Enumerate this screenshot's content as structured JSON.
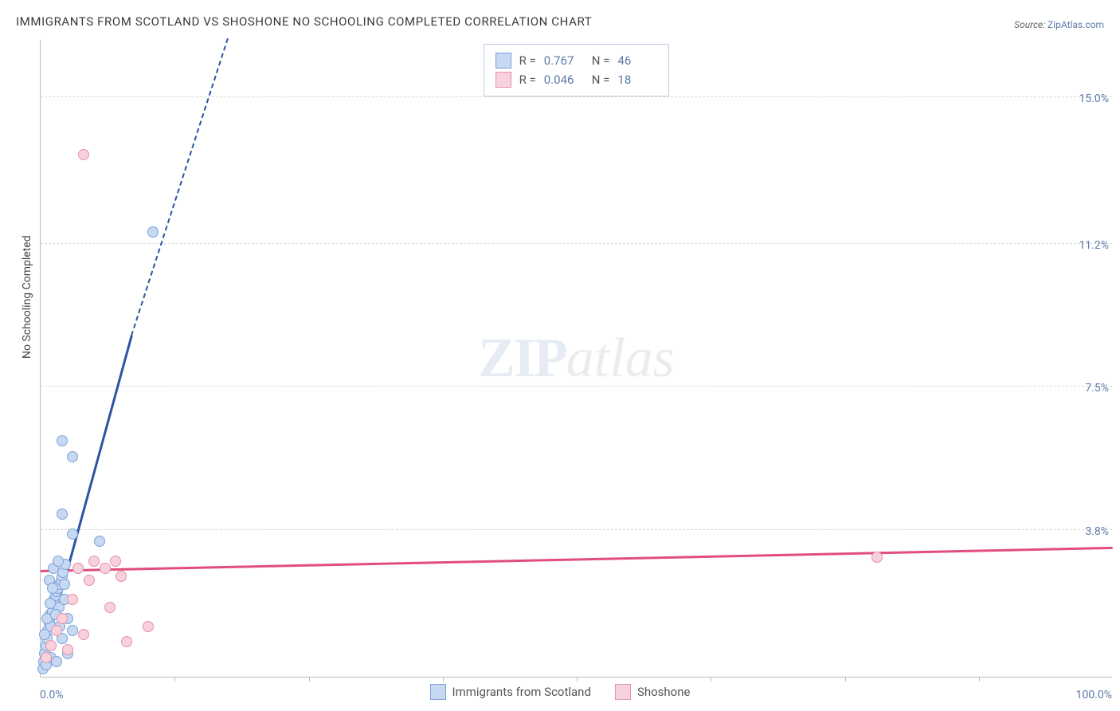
{
  "title": "IMMIGRANTS FROM SCOTLAND VS SHOSHONE NO SCHOOLING COMPLETED CORRELATION CHART",
  "source_prefix": "Source: ",
  "source_link": "ZipAtlas.com",
  "ylabel": "No Schooling Completed",
  "watermark": {
    "a": "ZIP",
    "b": "atlas"
  },
  "chart": {
    "type": "scatter",
    "xlim": [
      0,
      100
    ],
    "ylim": [
      0,
      16.5
    ],
    "x_ticks_count": 8,
    "y_gridlines": [
      {
        "val": 3.8,
        "label": "3.8%"
      },
      {
        "val": 7.5,
        "label": "7.5%"
      },
      {
        "val": 11.2,
        "label": "11.2%"
      },
      {
        "val": 15.0,
        "label": "15.0%"
      }
    ],
    "x_left_label": "0.0%",
    "x_right_label": "100.0%",
    "grid_color": "#d8d8d8",
    "axis_color": "#bbbbbb",
    "point_radius": 7,
    "background_color": "#ffffff"
  },
  "series": [
    {
      "id": "scotland",
      "label": "Immigrants from Scotland",
      "R": "0.767",
      "N": "46",
      "fill": "#c7d8f2",
      "stroke": "#7ba2d8",
      "line_color": "#2b54a3",
      "trend": {
        "x0": 0,
        "y0": 0.2,
        "x1": 8.5,
        "y1": 8.8,
        "x2": 17.5,
        "y2": 16.5
      },
      "points": [
        {
          "x": 0.2,
          "y": 0.2
        },
        {
          "x": 0.3,
          "y": 0.4
        },
        {
          "x": 0.4,
          "y": 0.6
        },
        {
          "x": 0.5,
          "y": 0.8
        },
        {
          "x": 0.6,
          "y": 1.0
        },
        {
          "x": 0.7,
          "y": 1.2
        },
        {
          "x": 0.8,
          "y": 1.4
        },
        {
          "x": 0.9,
          "y": 1.6
        },
        {
          "x": 1.0,
          "y": 1.3
        },
        {
          "x": 1.1,
          "y": 1.7
        },
        {
          "x": 1.2,
          "y": 1.9
        },
        {
          "x": 1.3,
          "y": 2.0
        },
        {
          "x": 1.4,
          "y": 2.1
        },
        {
          "x": 1.5,
          "y": 2.2
        },
        {
          "x": 1.6,
          "y": 2.3
        },
        {
          "x": 1.7,
          "y": 1.8
        },
        {
          "x": 1.8,
          "y": 2.4
        },
        {
          "x": 1.9,
          "y": 2.5
        },
        {
          "x": 2.0,
          "y": 2.6
        },
        {
          "x": 2.1,
          "y": 2.7
        },
        {
          "x": 2.2,
          "y": 2.0
        },
        {
          "x": 2.3,
          "y": 2.9
        },
        {
          "x": 2.5,
          "y": 1.5
        },
        {
          "x": 0.5,
          "y": 0.3
        },
        {
          "x": 1.0,
          "y": 0.5
        },
        {
          "x": 1.5,
          "y": 0.4
        },
        {
          "x": 2.0,
          "y": 1.0
        },
        {
          "x": 2.5,
          "y": 0.6
        },
        {
          "x": 3.0,
          "y": 1.2
        },
        {
          "x": 3.5,
          "y": 2.8
        },
        {
          "x": 3.0,
          "y": 3.7
        },
        {
          "x": 2.0,
          "y": 4.2
        },
        {
          "x": 5.5,
          "y": 3.5
        },
        {
          "x": 3.0,
          "y": 5.7
        },
        {
          "x": 2.0,
          "y": 6.1
        },
        {
          "x": 10.5,
          "y": 11.5
        },
        {
          "x": 0.8,
          "y": 2.5
        },
        {
          "x": 1.2,
          "y": 2.8
        },
        {
          "x": 1.6,
          "y": 3.0
        },
        {
          "x": 0.4,
          "y": 1.1
        },
        {
          "x": 0.6,
          "y": 1.5
        },
        {
          "x": 0.9,
          "y": 1.9
        },
        {
          "x": 1.1,
          "y": 2.3
        },
        {
          "x": 1.4,
          "y": 1.6
        },
        {
          "x": 1.8,
          "y": 1.3
        },
        {
          "x": 2.2,
          "y": 2.4
        }
      ]
    },
    {
      "id": "shoshone",
      "label": "Shoshone",
      "R": "0.046",
      "N": "18",
      "fill": "#f7d1dc",
      "stroke": "#e690ab",
      "line_color": "#e24d7a",
      "trend": {
        "x0": 0,
        "y0": 2.7,
        "x1": 100,
        "y1": 3.3
      },
      "points": [
        {
          "x": 0.5,
          "y": 0.5
        },
        {
          "x": 1.0,
          "y": 0.8
        },
        {
          "x": 1.5,
          "y": 1.2
        },
        {
          "x": 2.0,
          "y": 1.5
        },
        {
          "x": 2.5,
          "y": 0.7
        },
        {
          "x": 3.0,
          "y": 2.0
        },
        {
          "x": 3.5,
          "y": 2.8
        },
        {
          "x": 4.0,
          "y": 1.1
        },
        {
          "x": 4.5,
          "y": 2.5
        },
        {
          "x": 5.0,
          "y": 3.0
        },
        {
          "x": 6.5,
          "y": 1.8
        },
        {
          "x": 7.5,
          "y": 2.6
        },
        {
          "x": 8.0,
          "y": 0.9
        },
        {
          "x": 4.0,
          "y": 13.5
        },
        {
          "x": 7.0,
          "y": 3.0
        },
        {
          "x": 10.0,
          "y": 1.3
        },
        {
          "x": 6.0,
          "y": 2.8
        },
        {
          "x": 78.0,
          "y": 3.1
        }
      ]
    }
  ],
  "legend_top": {
    "r_label": "R  =",
    "n_label": "N  ="
  }
}
